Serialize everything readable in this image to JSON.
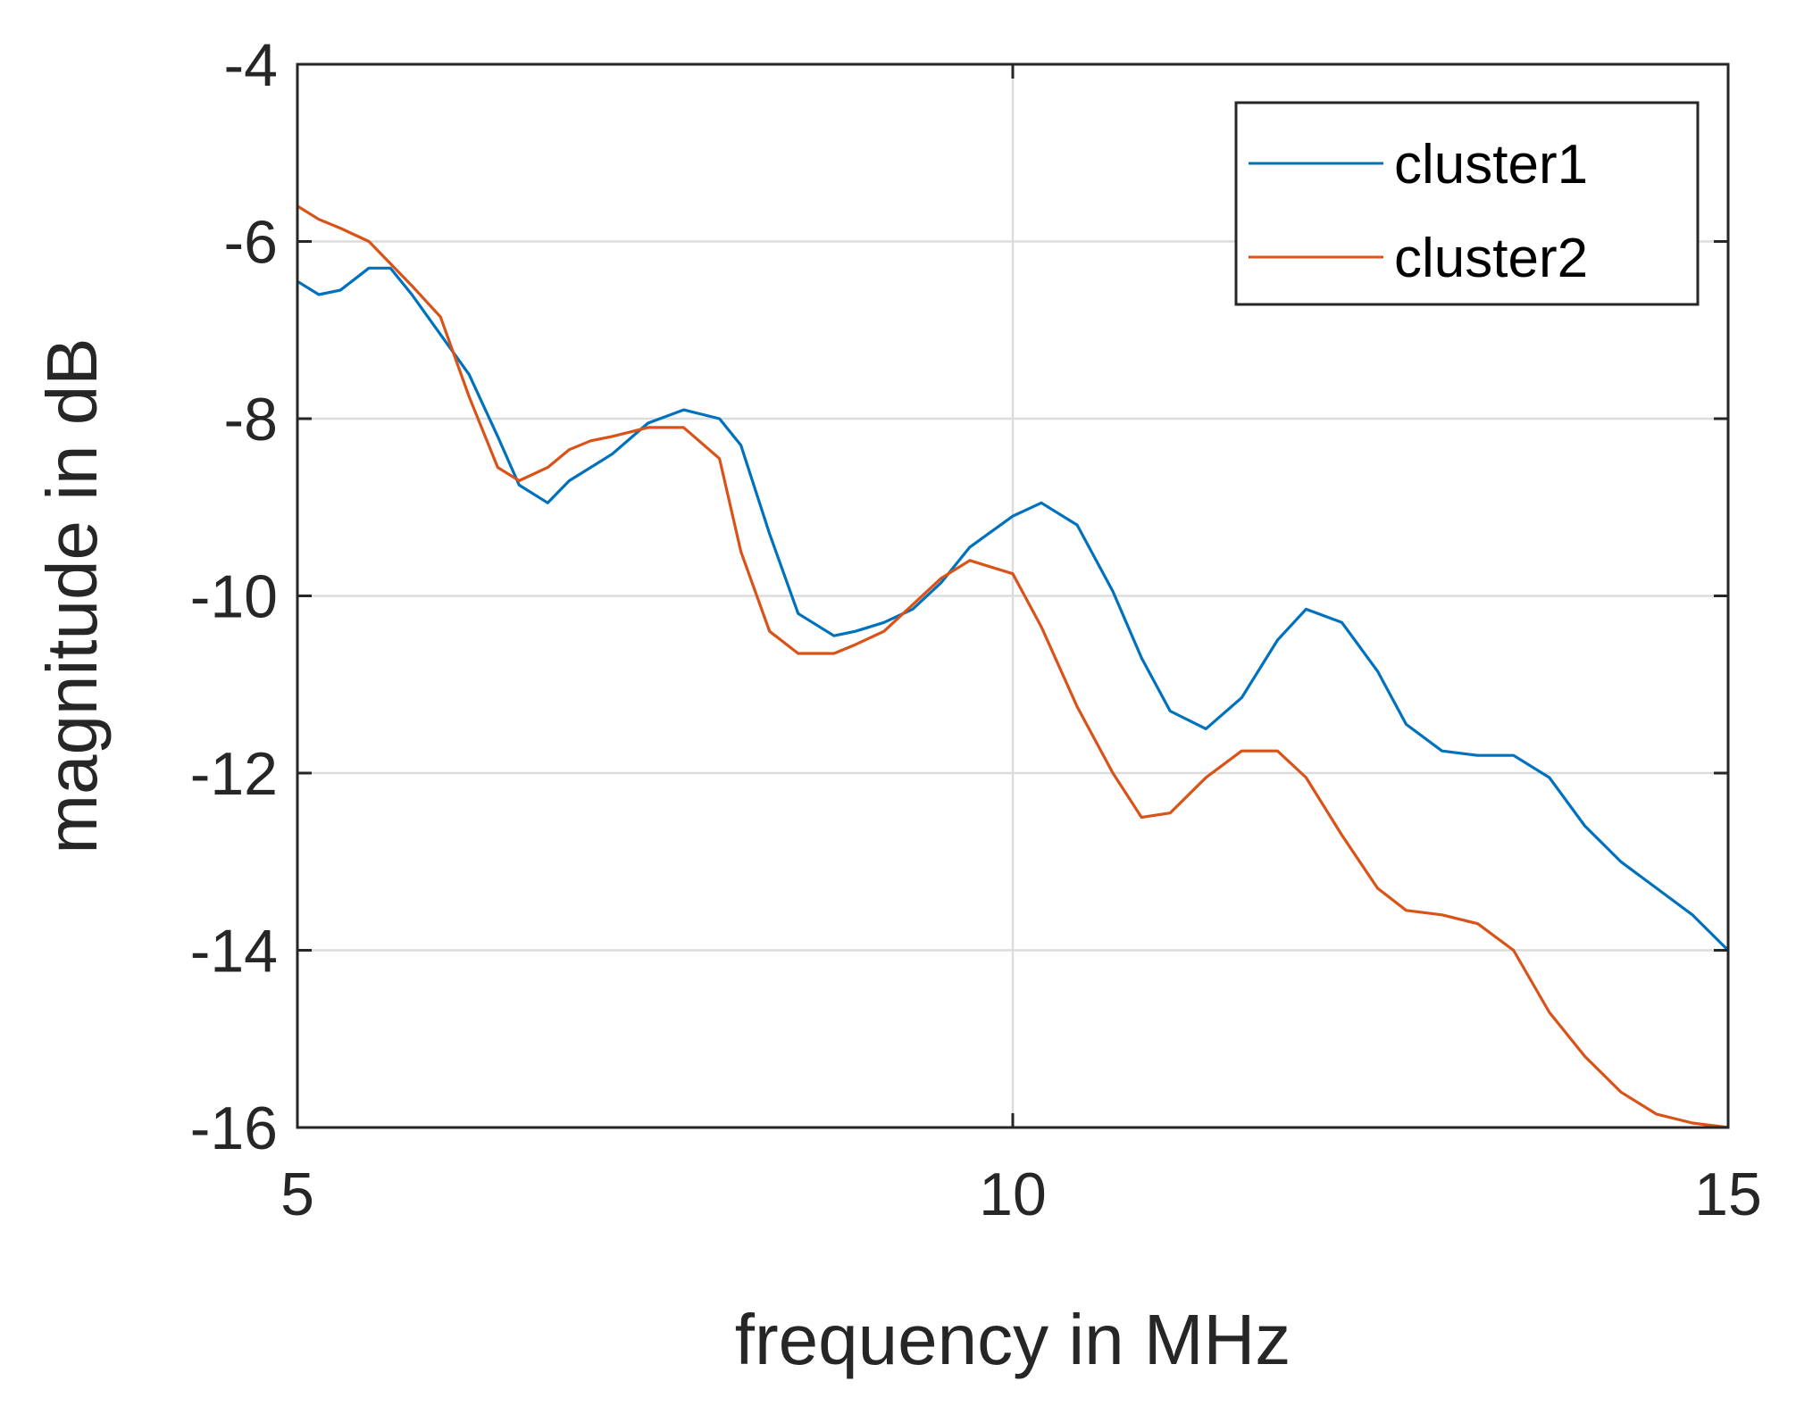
{
  "chart_data": {
    "type": "line",
    "title": "",
    "xlabel": "frequency in MHz",
    "ylabel": "magnitude in dB",
    "xlim": [
      5,
      15
    ],
    "ylim": [
      -16,
      -4
    ],
    "xticks": [
      5,
      10,
      15
    ],
    "yticks": [
      -16,
      -14,
      -12,
      -10,
      -8,
      -6,
      -4
    ],
    "grid": true,
    "legend_position": "top-right",
    "series": [
      {
        "name": "cluster1",
        "color": "#0072BD",
        "x": [
          5.0,
          5.15,
          5.3,
          5.5,
          5.65,
          5.8,
          6.0,
          6.2,
          6.4,
          6.55,
          6.75,
          6.9,
          7.05,
          7.2,
          7.45,
          7.7,
          7.95,
          8.1,
          8.3,
          8.5,
          8.75,
          8.9,
          9.1,
          9.3,
          9.5,
          9.7,
          10.0,
          10.2,
          10.45,
          10.7,
          10.9,
          11.1,
          11.35,
          11.6,
          11.85,
          12.05,
          12.3,
          12.55,
          12.75,
          13.0,
          13.25,
          13.5,
          13.75,
          14.0,
          14.25,
          14.5,
          14.75,
          15.0
        ],
        "y": [
          -6.45,
          -6.6,
          -6.55,
          -6.3,
          -6.3,
          -6.6,
          -7.05,
          -7.5,
          -8.2,
          -8.75,
          -8.95,
          -8.7,
          -8.55,
          -8.4,
          -8.05,
          -7.9,
          -8.0,
          -8.3,
          -9.3,
          -10.2,
          -10.45,
          -10.4,
          -10.3,
          -10.15,
          -9.85,
          -9.45,
          -9.1,
          -8.95,
          -9.2,
          -9.95,
          -10.7,
          -11.3,
          -11.5,
          -11.15,
          -10.5,
          -10.15,
          -10.3,
          -10.85,
          -11.45,
          -11.75,
          -11.8,
          -11.8,
          -12.05,
          -12.6,
          -13.0,
          -13.3,
          -13.6,
          -14.0
        ]
      },
      {
        "name": "cluster2",
        "color": "#D95319",
        "x": [
          5.0,
          5.15,
          5.3,
          5.5,
          5.65,
          5.8,
          6.0,
          6.2,
          6.4,
          6.55,
          6.75,
          6.9,
          7.05,
          7.2,
          7.45,
          7.7,
          7.95,
          8.1,
          8.3,
          8.5,
          8.75,
          8.9,
          9.1,
          9.3,
          9.5,
          9.7,
          10.0,
          10.2,
          10.45,
          10.7,
          10.9,
          11.1,
          11.35,
          11.6,
          11.85,
          12.05,
          12.3,
          12.55,
          12.75,
          13.0,
          13.25,
          13.5,
          13.75,
          14.0,
          14.25,
          14.5,
          14.75,
          15.0
        ],
        "y": [
          -5.6,
          -5.75,
          -5.85,
          -6.0,
          -6.25,
          -6.5,
          -6.85,
          -7.75,
          -8.55,
          -8.7,
          -8.55,
          -8.35,
          -8.25,
          -8.2,
          -8.1,
          -8.1,
          -8.45,
          -9.5,
          -10.4,
          -10.65,
          -10.65,
          -10.55,
          -10.4,
          -10.1,
          -9.8,
          -9.6,
          -9.75,
          -10.35,
          -11.25,
          -12.0,
          -12.5,
          -12.45,
          -12.05,
          -11.75,
          -11.75,
          -12.05,
          -12.7,
          -13.3,
          -13.55,
          -13.6,
          -13.7,
          -14.0,
          -14.7,
          -15.2,
          -15.6,
          -15.85,
          -15.95,
          -16.0
        ]
      }
    ]
  }
}
